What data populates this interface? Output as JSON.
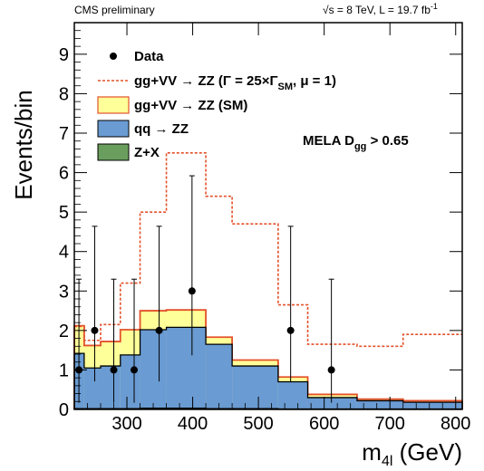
{
  "header": {
    "left": "CMS preliminary",
    "right_prefix": "√s = 8 TeV, L = 19.7 fb",
    "right_sup": "-1"
  },
  "chart_data": {
    "type": "histogram",
    "xlabel_main": "m",
    "xlabel_sub": "4l",
    "xlabel_unit": " (GeV)",
    "ylabel": "Events/bin",
    "xlim": [
      220,
      810
    ],
    "ylim": [
      0,
      9.8
    ],
    "x_ticks": [
      300,
      400,
      500,
      600,
      700,
      800
    ],
    "y_ticks": [
      0,
      1,
      2,
      3,
      4,
      5,
      6,
      7,
      8,
      9
    ],
    "annotation": {
      "main": "MELA D",
      "sub": "gg",
      "tail": " > 0.65"
    },
    "bin_edges": [
      220,
      235,
      260,
      290,
      320,
      360,
      420,
      460,
      530,
      575,
      650,
      720,
      810
    ],
    "stack": [
      {
        "name": "Z+X",
        "color": "#6a9e5e",
        "values": [
          0.02,
          0.02,
          0.02,
          0.02,
          0.03,
          0.03,
          0.02,
          0.02,
          0.01,
          0.01,
          0.01,
          0.01
        ]
      },
      {
        "name": "qq → ZZ",
        "color": "#6a9bd2",
        "values": [
          1.42,
          1.05,
          1.1,
          1.38,
          2.02,
          2.08,
          1.65,
          1.1,
          0.7,
          0.3,
          0.22,
          0.18
        ]
      },
      {
        "name": "gg+VV → ZZ (SM)",
        "color": "#ffff99",
        "values": [
          2.12,
          1.62,
          1.72,
          2.02,
          2.5,
          2.52,
          1.83,
          1.25,
          0.82,
          0.38,
          0.26,
          0.22
        ]
      }
    ],
    "alt_signal": {
      "name_prefix": "gg+VV → ZZ (Γ = 25×Γ",
      "name_sub": "SM",
      "name_suffix": ", μ = 1)",
      "color": "#e3512a",
      "values": [
        2.1,
        1.75,
        2.15,
        3.2,
        5.0,
        6.5,
        5.4,
        4.7,
        2.65,
        1.65,
        1.6,
        1.9
      ]
    },
    "data_points": {
      "name": "Data",
      "x": [
        227,
        251,
        280,
        311,
        349,
        399,
        549,
        611
      ],
      "y": [
        1,
        2,
        1,
        1,
        2,
        3,
        2,
        1
      ],
      "err_low": [
        0.83,
        1.29,
        0.83,
        0.83,
        1.29,
        1.63,
        1.29,
        0.83
      ],
      "err_high": [
        2.3,
        2.64,
        2.3,
        2.3,
        2.64,
        2.92,
        2.64,
        2.3
      ]
    }
  }
}
